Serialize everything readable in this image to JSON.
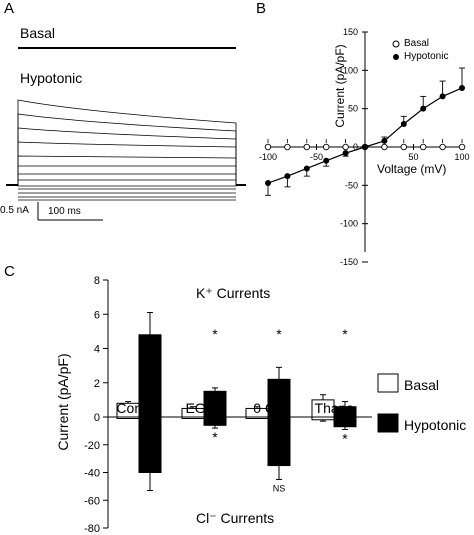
{
  "panels": {
    "A": {
      "letter": "A",
      "basal_label": "Basal",
      "hypotonic_label": "Hypotonic",
      "scale_current": "0.5 nA",
      "scale_time": "100 ms"
    },
    "B": {
      "letter": "B",
      "xlabel": "Voltage (mV)",
      "ylabel": "Current (pA/pF)",
      "x_ticks": [
        "-100",
        "-50",
        "0",
        "50",
        "100"
      ],
      "y_ticks": [
        "150",
        "100",
        "50",
        "0",
        "-50",
        "-100",
        "-150"
      ],
      "legend": [
        "Basal",
        "Hypotonic"
      ]
    },
    "C": {
      "letter": "C",
      "ylabel": "Current (pA/pF)",
      "top_title": "K⁺ Currents",
      "bottom_title": "Cl⁻ Currents",
      "top_ticks": [
        "8",
        "6",
        "4",
        "2",
        "0"
      ],
      "bottom_ticks": [
        "-20",
        "-40",
        "-60",
        "-80"
      ],
      "categories": [
        "Control",
        "EGTA",
        "0 Ca",
        "Thaps"
      ],
      "legend": [
        "Basal",
        "Hypotonic"
      ],
      "ns_label": "NS",
      "star": "*"
    }
  },
  "chart_data": [
    {
      "type": "line",
      "panel": "B",
      "xlabel": "Voltage (mV)",
      "ylabel": "Current (pA/pF)",
      "xlim": [
        -100,
        100
      ],
      "ylim": [
        -150,
        150
      ],
      "series": [
        {
          "name": "Basal",
          "marker": "open-circle",
          "x": [
            -100,
            -80,
            -60,
            -40,
            -20,
            0,
            20,
            40,
            60,
            80,
            100
          ],
          "y": [
            0,
            0,
            0,
            0,
            0,
            0,
            0,
            0,
            0,
            0,
            0
          ]
        },
        {
          "name": "Hypotonic",
          "marker": "filled-circle",
          "x": [
            -100,
            -80,
            -60,
            -40,
            -20,
            0,
            20,
            40,
            60,
            80,
            100
          ],
          "y": [
            -47,
            -38,
            -28,
            -18,
            -8,
            0,
            8,
            30,
            50,
            66,
            77
          ],
          "err": [
            16,
            14,
            10,
            7,
            4,
            2,
            5,
            10,
            16,
            20,
            26
          ]
        }
      ]
    },
    {
      "type": "bar",
      "panel": "C-top",
      "title": "K⁺ Currents",
      "ylabel": "Current (pA/pF)",
      "ylim": [
        0,
        8
      ],
      "categories": [
        "Control",
        "EGTA",
        "0 Ca",
        "Thaps"
      ],
      "series": [
        {
          "name": "Basal",
          "color": "#ffffff",
          "values": [
            0.8,
            0.5,
            0.5,
            1.0
          ],
          "err": [
            0.1,
            0.1,
            0.1,
            0.3
          ]
        },
        {
          "name": "Hypotonic",
          "color": "#000000",
          "values": [
            4.8,
            1.5,
            2.2,
            0.6
          ],
          "err": [
            1.3,
            0.2,
            0.7,
            0.3
          ]
        }
      ],
      "significance": [
        "",
        "*",
        "*",
        "*"
      ]
    },
    {
      "type": "bar",
      "panel": "C-bottom",
      "title": "Cl⁻ Currents",
      "ylim": [
        -80,
        0
      ],
      "categories": [
        "Control",
        "EGTA",
        "0 Ca",
        "Thaps"
      ],
      "series": [
        {
          "name": "Basal",
          "color": "#ffffff",
          "values": [
            -1,
            -1,
            -1,
            -2
          ],
          "err": [
            0,
            0,
            0,
            1
          ]
        },
        {
          "name": "Hypotonic",
          "color": "#000000",
          "values": [
            -40,
            -6,
            -35,
            -7
          ],
          "err": [
            13,
            2,
            10,
            2
          ]
        }
      ],
      "significance": [
        "",
        "*",
        "NS",
        "*"
      ]
    }
  ]
}
